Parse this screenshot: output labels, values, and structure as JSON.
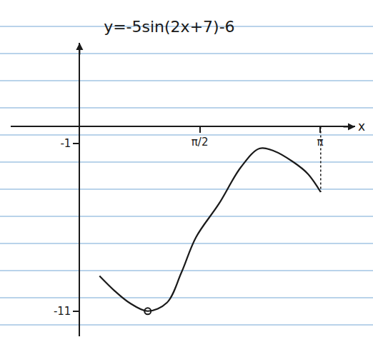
{
  "chart_data": {
    "type": "line",
    "title": "y=-5sin(2x+7)-6",
    "x_label": "x",
    "x": [
      0.26,
      0.46,
      0.65,
      0.89,
      1.14,
      1.33,
      1.52,
      1.82,
      2.11,
      2.35,
      2.54,
      2.79,
      2.98,
      3.15
    ],
    "values": [
      -8.9,
      -9.8,
      -10.5,
      -11,
      -10.5,
      -8.7,
      -6.6,
      -4.6,
      -2.4,
      -1.3,
      -1.45,
      -2.1,
      -2.8,
      -3.9
    ],
    "color": "#1a1a1a",
    "marked_point": {
      "x": 0.89,
      "y": -11
    },
    "xlim": [
      -0.9,
      3.6
    ],
    "ylim": [
      -12.5,
      5
    ],
    "xticks": [
      {
        "value": 1.5708,
        "label": "π/2"
      },
      {
        "value": 3.1416,
        "label": "π"
      }
    ],
    "yticks": [
      -1,
      -11
    ],
    "grid": false
  }
}
